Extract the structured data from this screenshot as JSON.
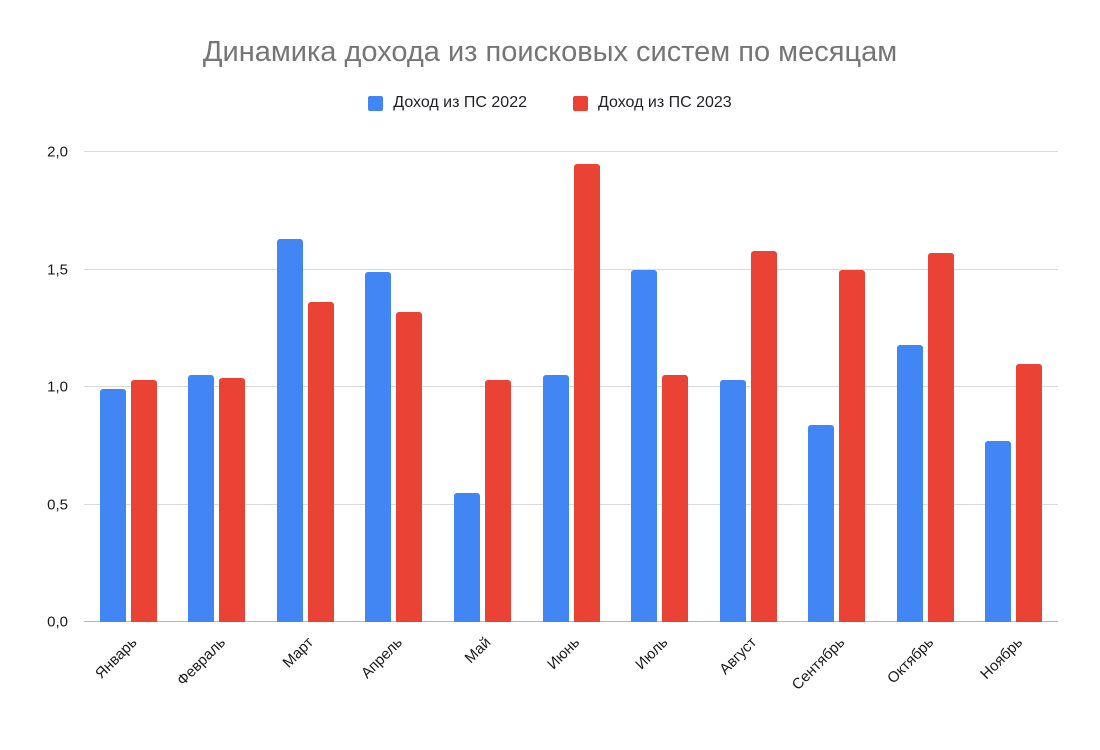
{
  "chart_data": {
    "type": "bar",
    "title": "Динамика дохода из поисковых систем по месяцам",
    "categories": [
      "Январь",
      "Февраль",
      "Март",
      "Апрель",
      "Май",
      "Июнь",
      "Июль",
      "Август",
      "Сентябрь",
      "Октябрь",
      "Ноябрь"
    ],
    "series": [
      {
        "name": "Доход из ПС 2022",
        "color": "#4285f4",
        "values": [
          0.99,
          1.05,
          1.63,
          1.49,
          0.55,
          1.05,
          1.5,
          1.03,
          0.84,
          1.18,
          0.77
        ]
      },
      {
        "name": "Доход из ПС 2023",
        "color": "#ea4335",
        "values": [
          1.03,
          1.04,
          1.36,
          1.32,
          1.03,
          1.95,
          1.05,
          1.58,
          1.5,
          1.57,
          1.1
        ]
      }
    ],
    "xlabel": "",
    "ylabel": "",
    "ylim": [
      0,
      2.0
    ],
    "grid": true,
    "legend_position": "top",
    "yticks": [
      {
        "value": 0.0,
        "label": "0,0"
      },
      {
        "value": 0.5,
        "label": "0,5"
      },
      {
        "value": 1.0,
        "label": "1,0"
      },
      {
        "value": 1.5,
        "label": "1,5"
      },
      {
        "value": 2.0,
        "label": "2,0"
      }
    ]
  }
}
